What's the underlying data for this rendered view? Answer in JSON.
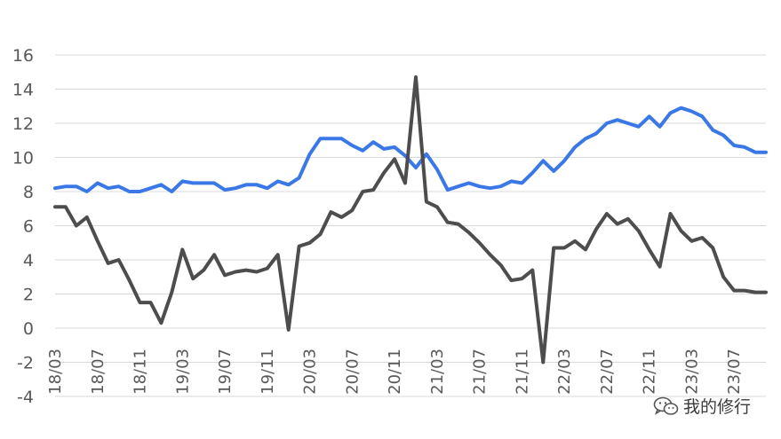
{
  "chart_data": {
    "type": "line",
    "title": "",
    "xlabel": "",
    "ylabel": "",
    "ylim": [
      -4,
      16
    ],
    "yticks": [
      -4,
      -2,
      0,
      2,
      4,
      6,
      8,
      10,
      12,
      14,
      16
    ],
    "grid": true,
    "legend": "none",
    "x": [
      "18/03",
      "18/04",
      "18/05",
      "18/06",
      "18/07",
      "18/08",
      "18/09",
      "18/10",
      "18/11",
      "18/12",
      "19/01",
      "19/02",
      "19/03",
      "19/04",
      "19/05",
      "19/06",
      "19/07",
      "19/08",
      "19/09",
      "19/10",
      "19/11",
      "19/12",
      "20/01",
      "20/02",
      "20/03",
      "20/04",
      "20/05",
      "20/06",
      "20/07",
      "20/08",
      "20/09",
      "20/10",
      "20/11",
      "20/12",
      "21/01",
      "21/02",
      "21/03",
      "21/04",
      "21/05",
      "21/06",
      "21/07",
      "21/08",
      "21/09",
      "21/10",
      "21/11",
      "21/12",
      "22/01",
      "22/02",
      "22/03",
      "22/04",
      "22/05",
      "22/06",
      "22/07",
      "22/08",
      "22/09",
      "22/10",
      "22/11",
      "22/12",
      "23/01",
      "23/02",
      "23/03",
      "23/04",
      "23/05",
      "23/06",
      "23/07",
      "23/08",
      "23/09",
      "23/10"
    ],
    "xticklabels": [
      "18/03",
      "18/07",
      "18/11",
      "19/03",
      "19/07",
      "19/11",
      "20/03",
      "20/07",
      "20/11",
      "21/03",
      "21/07",
      "21/11",
      "22/03",
      "22/07",
      "22/11",
      "23/03",
      "23/07"
    ],
    "series": [
      {
        "color": "#3b78e7",
        "values": [
          8.2,
          8.3,
          8.3,
          8.0,
          8.5,
          8.2,
          8.3,
          8.0,
          8.0,
          8.2,
          8.4,
          8.0,
          8.6,
          8.5,
          8.5,
          8.5,
          8.1,
          8.2,
          8.4,
          8.4,
          8.2,
          8.6,
          8.4,
          8.8,
          10.2,
          11.1,
          11.1,
          11.1,
          10.7,
          10.4,
          10.9,
          10.5,
          10.6,
          10.1,
          9.4,
          10.2,
          9.3,
          8.1,
          8.3,
          8.5,
          8.3,
          8.2,
          8.3,
          8.6,
          8.5,
          9.1,
          9.8,
          9.2,
          9.8,
          10.6,
          11.1,
          11.4,
          12.0,
          12.2,
          12.0,
          11.8,
          12.4,
          11.8,
          12.6,
          12.9,
          12.7,
          12.4,
          11.6,
          11.3,
          10.7,
          10.6,
          10.3,
          10.3
        ]
      },
      {
        "color": "#4d4d4d",
        "values": [
          7.1,
          7.1,
          6.0,
          6.5,
          5.1,
          3.8,
          4.0,
          2.8,
          1.5,
          1.5,
          0.3,
          2.1,
          4.6,
          2.9,
          3.4,
          4.3,
          3.1,
          3.3,
          3.4,
          3.3,
          3.5,
          4.3,
          -0.1,
          4.8,
          5.0,
          5.5,
          6.8,
          6.5,
          6.9,
          8.0,
          8.1,
          9.1,
          9.9,
          8.5,
          14.7,
          7.4,
          7.1,
          6.2,
          6.1,
          5.6,
          5.0,
          4.3,
          3.7,
          2.8,
          2.9,
          3.4,
          -2.0,
          4.7,
          4.7,
          5.1,
          4.6,
          5.8,
          6.7,
          6.1,
          6.4,
          5.7,
          4.6,
          3.6,
          6.7,
          5.7,
          5.1,
          5.3,
          4.7,
          3.0,
          2.2,
          2.2,
          2.1,
          2.1
        ]
      }
    ]
  },
  "watermark": {
    "text": "我的修行",
    "icon": "wechat-icon"
  }
}
